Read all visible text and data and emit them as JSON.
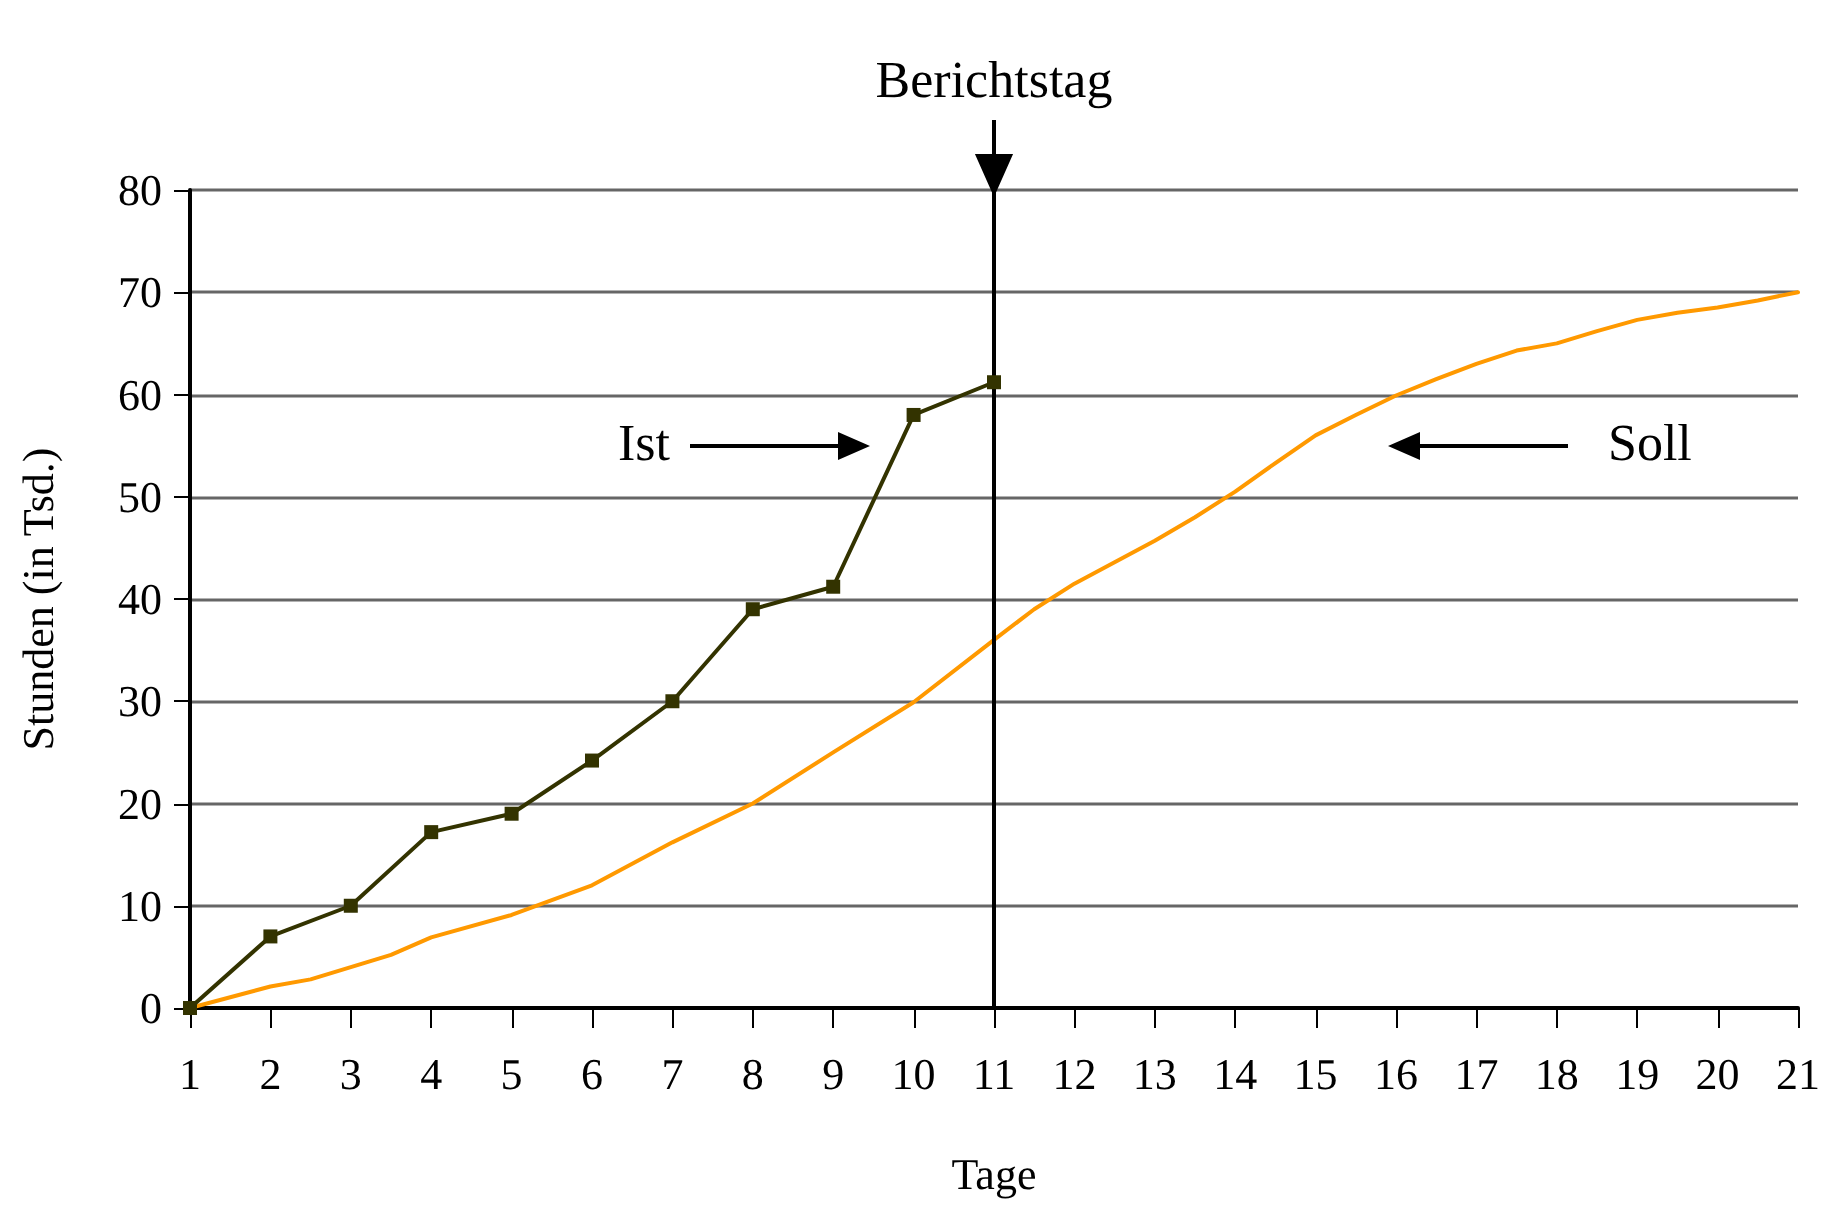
{
  "chart_data": {
    "type": "line",
    "xlabel": "Tage",
    "ylabel": "Stunden (in Tsd.)",
    "xlim": [
      1,
      21
    ],
    "xticks": [
      1,
      2,
      3,
      4,
      5,
      6,
      7,
      8,
      9,
      10,
      11,
      12,
      13,
      14,
      15,
      16,
      17,
      18,
      19,
      20,
      21
    ],
    "ylim": [
      0,
      80
    ],
    "yticks": [
      0,
      10,
      20,
      30,
      40,
      50,
      60,
      70,
      80
    ],
    "grid": "y",
    "series": [
      {
        "color": "#333300",
        "marker": "square",
        "x": [
          1,
          2,
          3,
          4,
          5,
          6,
          7,
          8,
          9,
          10,
          11
        ],
        "values": [
          0,
          7,
          10,
          17.2,
          19,
          24.2,
          30,
          39,
          41.2,
          58,
          61.2
        ]
      },
      {
        "color": "#ff9900",
        "marker": "none",
        "x": [
          1,
          2,
          2.5,
          3,
          3.5,
          4,
          5,
          6,
          7,
          8,
          9,
          10,
          11,
          11.5,
          12,
          12.5,
          13,
          13.5,
          14,
          14.5,
          15,
          15.5,
          16,
          16.5,
          17,
          17.5,
          18,
          18.5,
          19,
          19.5,
          20,
          20.5,
          21
        ],
        "values": [
          0,
          2.1,
          2.8,
          4,
          5.2,
          6.9,
          9.1,
          12,
          16.2,
          20,
          25,
          29.9,
          36,
          39,
          41.5,
          43.6,
          45.7,
          48,
          50.5,
          53.3,
          56,
          58,
          59.9,
          61.5,
          63,
          64.3,
          65,
          66.2,
          67.3,
          68,
          68.5,
          69.2,
          70
        ]
      }
    ],
    "annotations": [
      "Ist",
      "Soll"
    ],
    "ref_lines": [
      {
        "axis": "x",
        "value": 11,
        "label": "Berichtstag",
        "color": "#000000"
      }
    ]
  }
}
